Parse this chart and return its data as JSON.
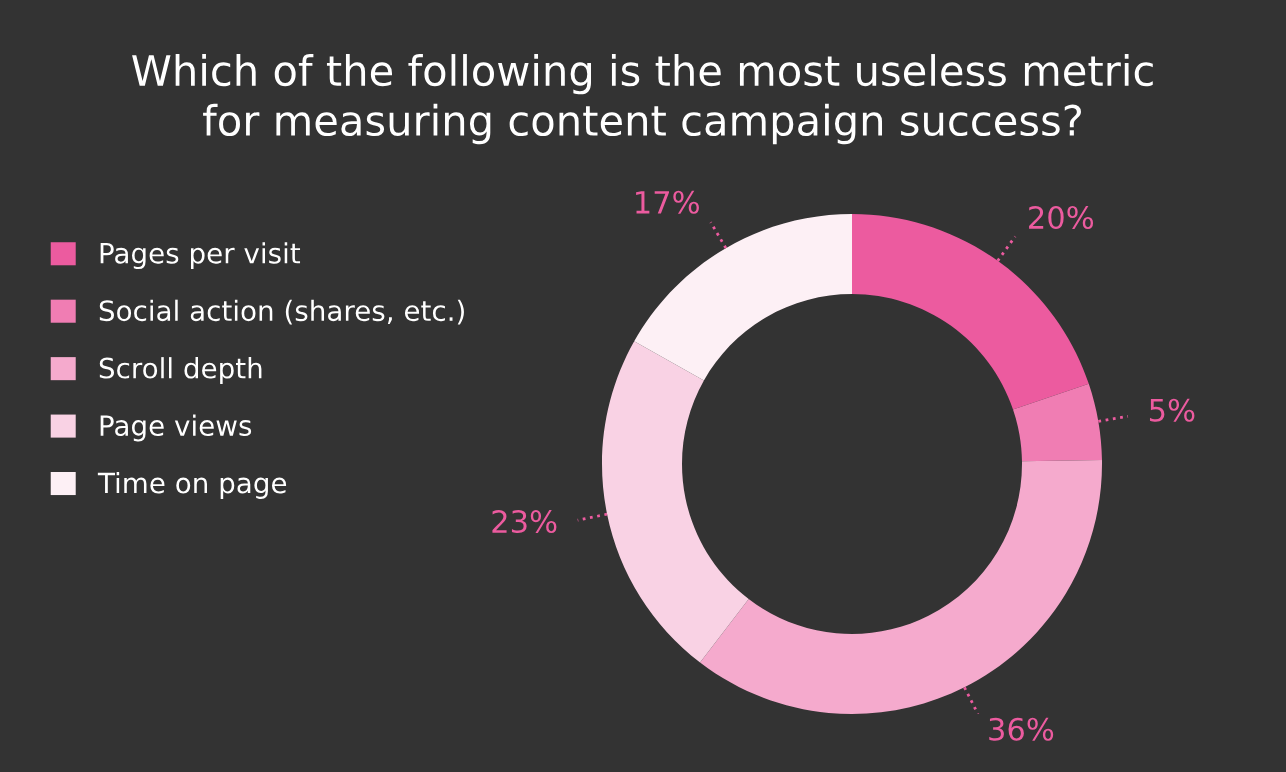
{
  "chart_data": {
    "type": "donut",
    "title": "Which of the following is the most useless metric\nfor measuring content campaign success?",
    "categories": [
      "Pages per visit",
      "Social action (shares, etc.)",
      "Scroll depth",
      "Page views",
      "Time on page"
    ],
    "values": [
      20,
      5,
      36,
      23,
      17
    ],
    "value_labels": [
      "20%",
      "5%",
      "36%",
      "23%",
      "17%"
    ],
    "colors": [
      "#ec5b9f",
      "#f07db3",
      "#f5aacd",
      "#f9d2e4",
      "#fdf0f5"
    ],
    "legend": "left"
  }
}
